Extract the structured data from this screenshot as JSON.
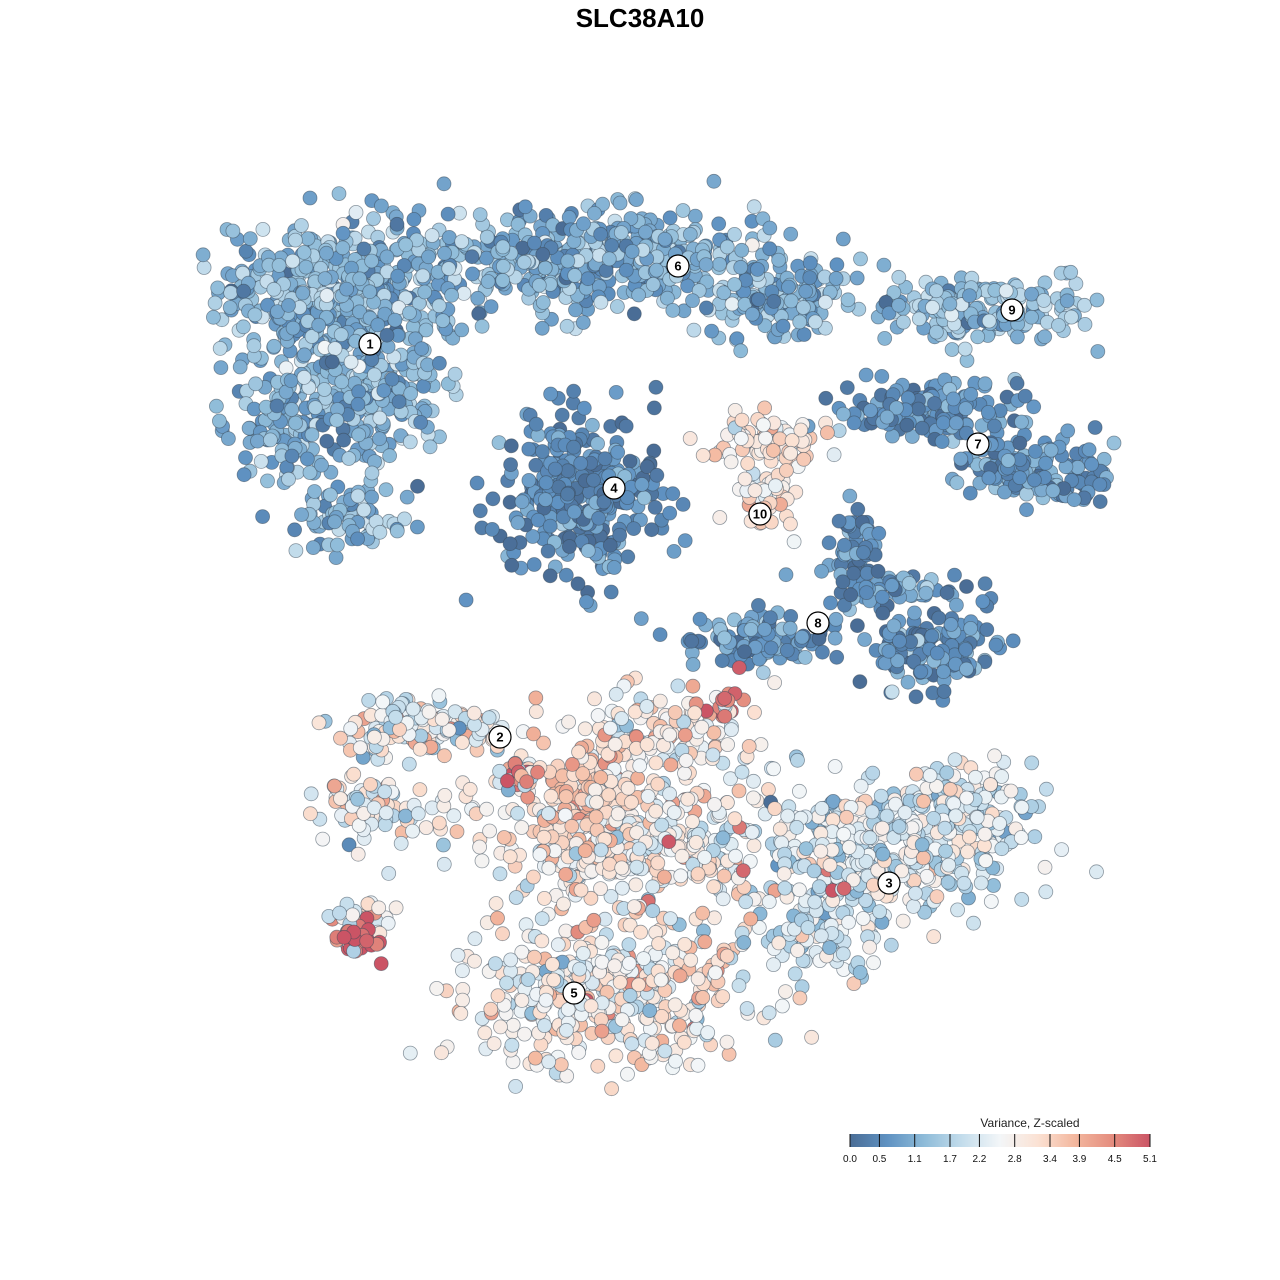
{
  "chart_data": {
    "type": "scatter",
    "title": "SLC38A10",
    "xlabel": "",
    "ylabel": "",
    "grid": false,
    "legend": {
      "title": "Variance, Z-scaled",
      "placement": "bottom-right",
      "ticks": [
        "0.0",
        "0.5",
        "1.1",
        "1.7",
        "2.2",
        "2.8",
        "3.4",
        "3.9",
        "4.5",
        "5.1"
      ],
      "range": [
        0.0,
        5.1
      ],
      "colors": [
        "#4a6d96",
        "#5f92c2",
        "#8fbcd9",
        "#c4ddec",
        "#f3f6f8",
        "#fbe2d4",
        "#f3b79e",
        "#e48c7e",
        "#cb5465"
      ]
    },
    "clusters": [
      {
        "label": "1",
        "value": 1.2
      },
      {
        "label": "2",
        "value": 2.6
      },
      {
        "label": "3",
        "value": 2.2
      },
      {
        "label": "4",
        "value": 0.5
      },
      {
        "label": "5",
        "value": 2.9
      },
      {
        "label": "6",
        "value": 1.1
      },
      {
        "label": "7",
        "value": 0.7
      },
      {
        "label": "8",
        "value": 0.6
      },
      {
        "label": "9",
        "value": 1.3
      },
      {
        "label": "10",
        "value": 3.0
      }
    ]
  }
}
